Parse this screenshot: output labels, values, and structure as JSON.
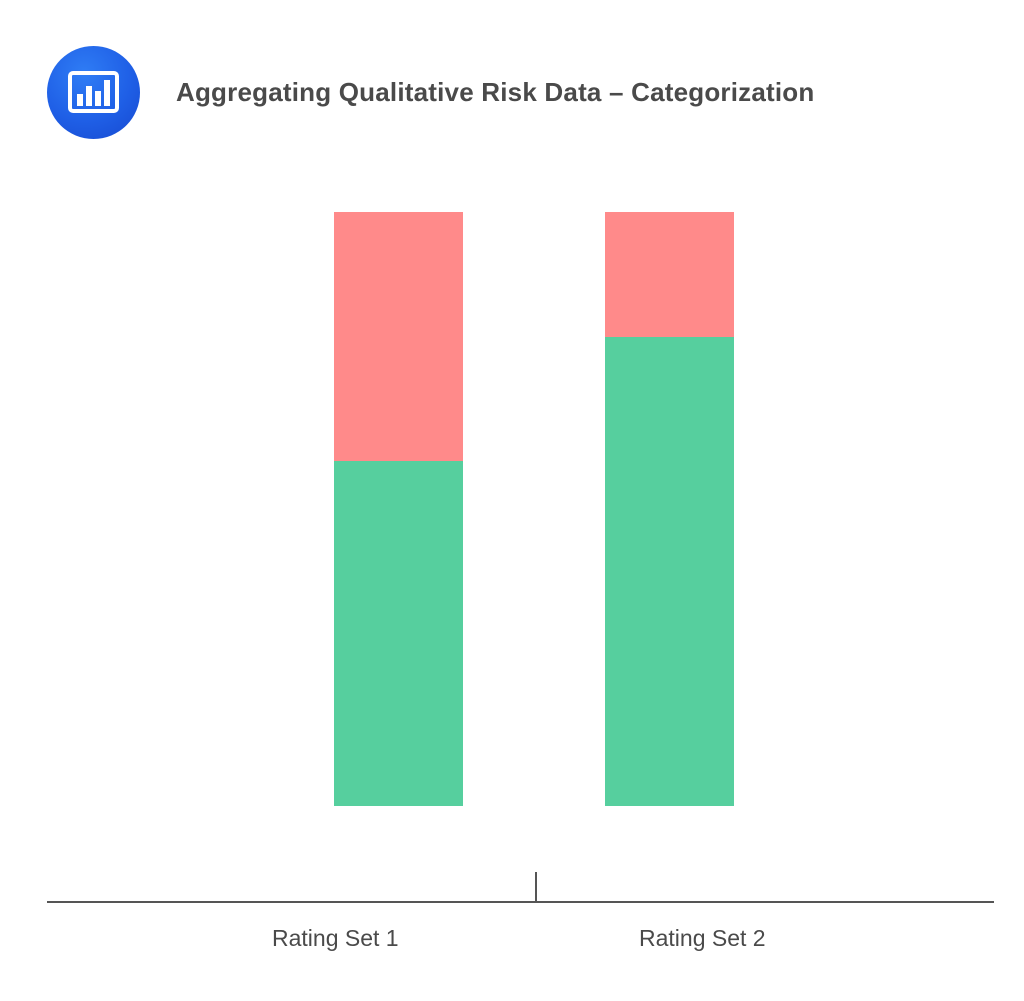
{
  "header": {
    "icon": "bar-chart-icon",
    "title": "Aggregating Qualitative Risk Data – Categorization"
  },
  "colors": {
    "icon_bg": "#1f5fe6",
    "red_segment": "#ff8a8a",
    "green_segment": "#56cf9e",
    "axis": "#555555",
    "text": "#4a4a4a"
  },
  "chart_data": {
    "type": "bar",
    "stacked": true,
    "title": "Aggregating Qualitative Risk Data – Categorization",
    "xlabel": "",
    "ylabel": "",
    "categories": [
      "Rating Set 1",
      "Rating Set 2"
    ],
    "series": [
      {
        "name": "Green (lower portion)",
        "color": "#56cf9e",
        "values": [
          58,
          79
        ]
      },
      {
        "name": "Red (upper portion)",
        "color": "#ff8a8a",
        "values": [
          42,
          21
        ]
      }
    ],
    "ylim": [
      0,
      100
    ],
    "units": "percent of bar (estimated from pixel heights)",
    "grid": false,
    "legend": "none"
  }
}
